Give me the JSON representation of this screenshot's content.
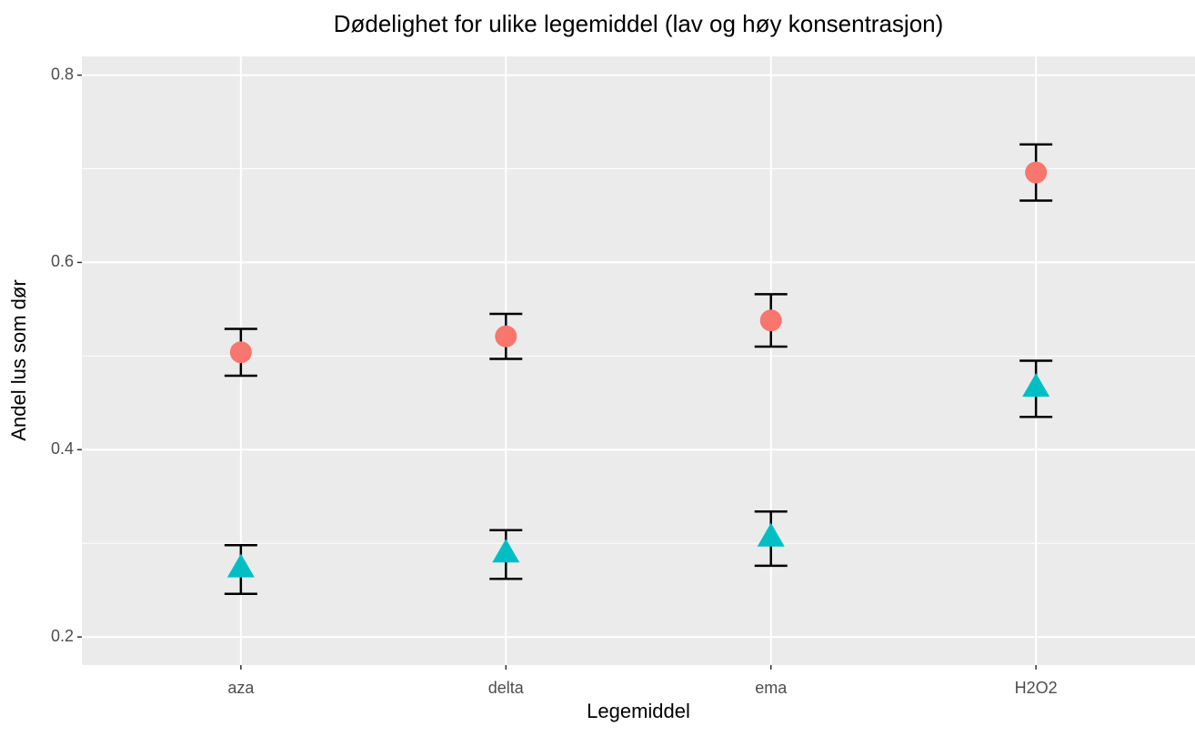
{
  "chart_data": {
    "type": "point",
    "title": "Dødelighet for ulike legemiddel (lav og høy konsentrasjon)",
    "x_label": "Legemiddel",
    "y_label": "Andel lus som dør",
    "categories": [
      "aza",
      "delta",
      "ema",
      "H2O2"
    ],
    "series": [
      {
        "color": "#f8766d",
        "shape": "circle",
        "values": [
          0.504,
          0.521,
          0.538,
          0.696
        ],
        "errors": [
          0.025,
          0.024,
          0.028,
          0.03
        ]
      },
      {
        "color": "#00bfc4",
        "shape": "triangle",
        "values": [
          0.272,
          0.288,
          0.305,
          0.465
        ],
        "errors": [
          0.026,
          0.026,
          0.029,
          0.03
        ]
      }
    ],
    "ylim": [
      0.17,
      0.82
    ],
    "yticks": [
      0.2,
      0.4,
      0.6,
      0.8
    ],
    "minor_grid": [
      0.3,
      0.5,
      0.7
    ],
    "grid": true
  }
}
